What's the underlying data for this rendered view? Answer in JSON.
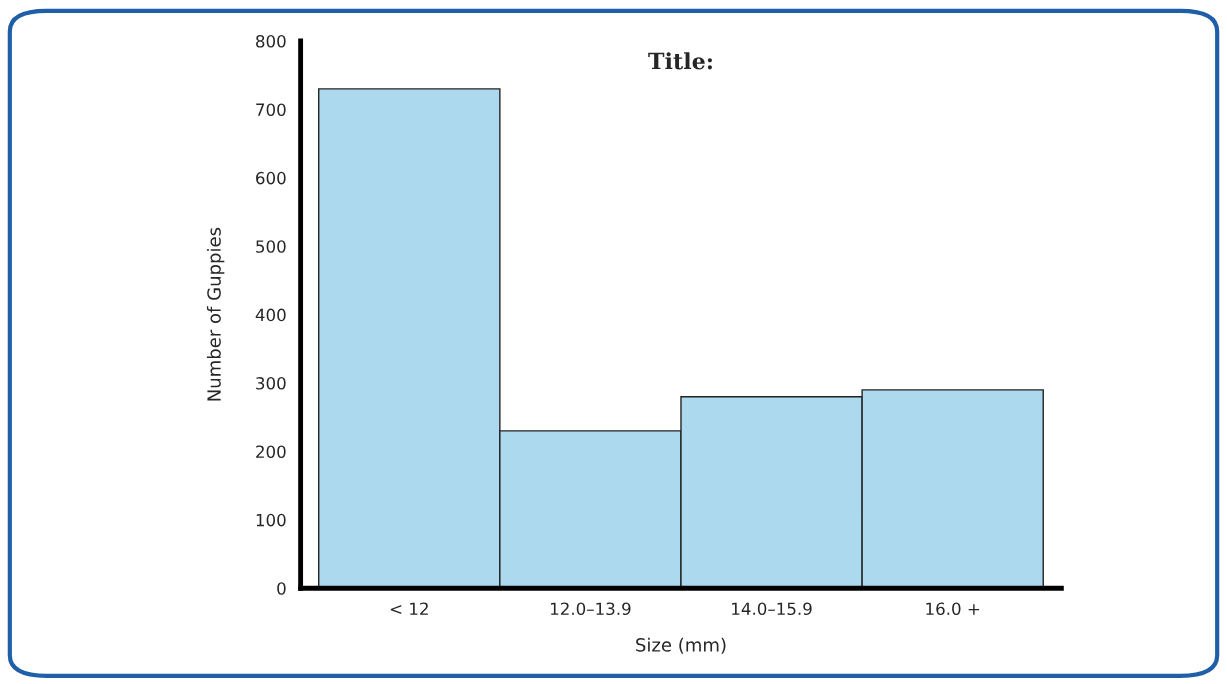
{
  "chart_data": {
    "type": "bar",
    "title": "Title:",
    "xlabel": "Size (mm)",
    "ylabel": "Number of Guppies",
    "categories": [
      "< 12",
      "12.0–13.9",
      "14.0–15.9",
      "16.0 +"
    ],
    "values": [
      730,
      230,
      280,
      290
    ],
    "color": "#acd9ee",
    "ylim": [
      0,
      800
    ],
    "yticks": [
      0,
      100,
      200,
      300,
      400,
      500,
      600,
      700,
      800
    ],
    "grid": false,
    "legend": false
  }
}
